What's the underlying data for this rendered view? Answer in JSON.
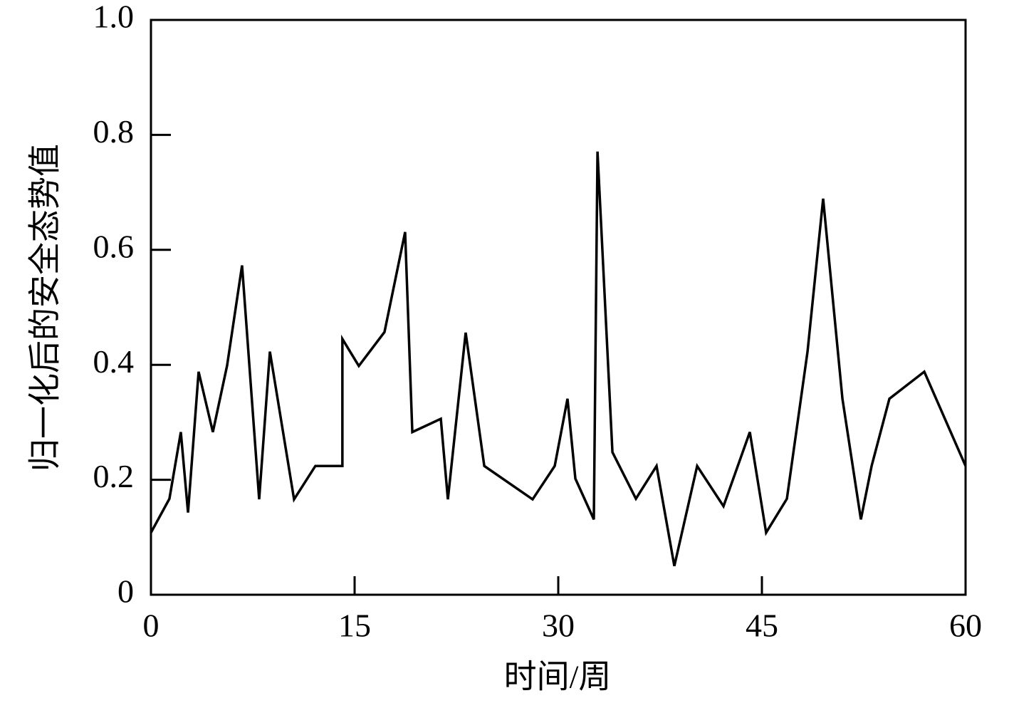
{
  "chart_data": {
    "type": "line",
    "x_label": "时间/周",
    "y_label": "归一化后的安全态势值",
    "x": [
      0,
      1.36,
      2.2,
      2.73,
      3.51,
      4.56,
      5.61,
      6.71,
      7.97,
      8.76,
      10.54,
      12.11,
      14.1,
      14.1,
      15.31,
      17.2,
      18.72,
      19.25,
      21.35,
      21.87,
      23.18,
      24.55,
      28.11,
      29.74,
      30.68,
      31.26,
      32.62,
      32.89,
      33.99,
      35.72,
      37.24,
      38.55,
      40.23,
      42.17,
      44.11,
      45.31,
      46.84,
      48.36,
      49.51,
      50.93,
      52.29,
      53.08,
      54.39,
      56.96,
      60
    ],
    "series": [
      {
        "color": "#000000",
        "values": [
          0.108,
          0.167,
          0.283,
          0.143,
          0.388,
          0.283,
          0.399,
          0.573,
          0.166,
          0.423,
          0.166,
          0.224,
          0.224,
          0.445,
          0.398,
          0.457,
          0.631,
          0.283,
          0.306,
          0.166,
          0.456,
          0.224,
          0.166,
          0.224,
          0.341,
          0.202,
          0.131,
          0.771,
          0.248,
          0.167,
          0.224,
          0.05,
          0.224,
          0.154,
          0.283,
          0.108,
          0.167,
          0.423,
          0.689,
          0.341,
          0.131,
          0.224,
          0.341,
          0.388,
          0.224
        ]
      }
    ],
    "xlim": [
      0,
      60
    ],
    "xticks": [
      0,
      15,
      30,
      45,
      60
    ],
    "ylim": [
      0,
      1
    ],
    "yticks": [
      0,
      0.2,
      0.4,
      0.6,
      0.8,
      {
        "value": 1,
        "label": "1.0"
      }
    ]
  }
}
